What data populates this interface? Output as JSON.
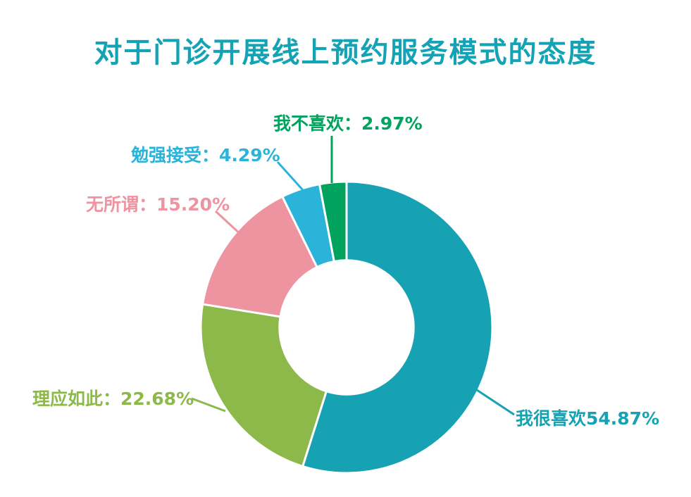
{
  "title": "对于门诊开展线上预约服务模式的态度",
  "colors": {
    "title": "#14a3b5",
    "like": "#17a2b3",
    "should": "#8cb94a",
    "neutral": "#ee93a0",
    "reluctant": "#2bb3d9",
    "dislike": "#00a25d",
    "background": "#ffffff",
    "slice_gap": "#ffffff"
  },
  "labels": {
    "dislike": "我不喜欢：2.97%",
    "reluctant": "勉强接受：4.29%",
    "neutral": "无所谓：15.20%",
    "should": "理应如此：22.68%",
    "like": "我很喜欢54.87%"
  },
  "chart_data": {
    "type": "pie",
    "subtype": "donut",
    "title": "对于门诊开展线上预约服务模式的态度",
    "categories": [
      "我很喜欢",
      "理应如此",
      "无所谓",
      "勉强接受",
      "我不喜欢"
    ],
    "values": [
      54.87,
      22.68,
      15.2,
      4.29,
      2.97
    ],
    "unit": "%",
    "colors": [
      "#17a2b3",
      "#8cb94a",
      "#ee93a0",
      "#2bb3d9",
      "#00a25d"
    ],
    "keys": [
      "like",
      "should",
      "neutral",
      "reluctant",
      "dislike"
    ],
    "callout_labels": [
      "我很喜欢54.87%",
      "理应如此：22.68%",
      "无所谓：15.20%",
      "勉强接受：4.29%",
      "我不喜欢：2.97%"
    ],
    "start_angle_deg": 0,
    "clockwise": true,
    "inner_radius_ratio": 0.46,
    "legend_position": "none",
    "grid": false
  }
}
